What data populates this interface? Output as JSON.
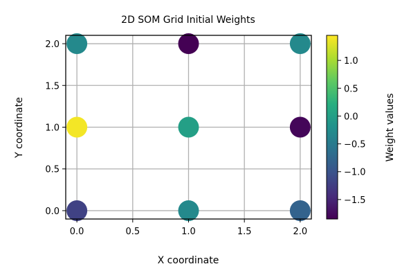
{
  "chart_data": {
    "type": "scatter",
    "title": "2D SOM Grid Initial Weights",
    "xlabel": "X coordinate",
    "ylabel": "Y coordinate",
    "xlim": [
      -0.1,
      2.1
    ],
    "ylim": [
      -0.1,
      2.1
    ],
    "xticks": [
      "0.0",
      "0.5",
      "1.0",
      "1.5",
      "2.0"
    ],
    "yticks": [
      "0.0",
      "0.5",
      "1.0",
      "1.5",
      "2.0"
    ],
    "grid": true,
    "colormap": "viridis",
    "points": [
      {
        "x": 0,
        "y": 0,
        "value": -1.2
      },
      {
        "x": 1,
        "y": 0,
        "value": -0.3
      },
      {
        "x": 2,
        "y": 0,
        "value": -0.8
      },
      {
        "x": 0,
        "y": 1,
        "value": 1.4
      },
      {
        "x": 1,
        "y": 1,
        "value": 0.0
      },
      {
        "x": 2,
        "y": 1,
        "value": -1.8
      },
      {
        "x": 0,
        "y": 2,
        "value": -0.3
      },
      {
        "x": 1,
        "y": 2,
        "value": -1.85
      },
      {
        "x": 2,
        "y": 2,
        "value": -0.3
      }
    ],
    "colorbar": {
      "label": "Weight values",
      "range": [
        -1.85,
        1.45
      ],
      "ticks": [
        {
          "value": 1.0,
          "label": "1.0"
        },
        {
          "value": 0.5,
          "label": "0.5"
        },
        {
          "value": 0.0,
          "label": "0.0"
        },
        {
          "value": -0.5,
          "label": "−0.5"
        },
        {
          "value": -1.0,
          "label": "−1.0"
        },
        {
          "value": -1.5,
          "label": "−1.5"
        }
      ]
    }
  }
}
